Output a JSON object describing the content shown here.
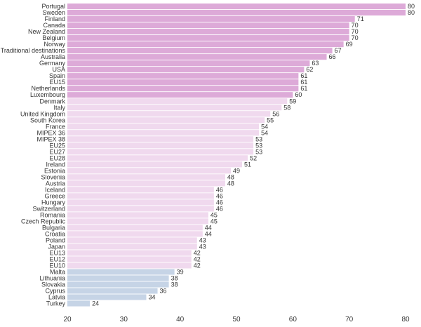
{
  "chart_data": {
    "type": "bar",
    "orientation": "horizontal",
    "categories": [
      "Portugal",
      "Sweden",
      "Finland",
      "Canada",
      "New Zealand",
      "Belgium",
      "Norway",
      "Traditional destinations",
      "Australia",
      "Germany",
      "USA",
      "Spain",
      "EU15",
      "Netherlands",
      "Luxembourg",
      "Denmark",
      "Italy",
      "United Kingdom",
      "South Korea",
      "France",
      "MIPEX 36",
      "MIPEX 38",
      "EU25",
      "EU27",
      "EU28",
      "Ireland",
      "Estonia",
      "Slovenia",
      "Austria",
      "Iceland",
      "Greece",
      "Hungary",
      "Switzerland",
      "Romania",
      "Czech Republic",
      "Bulgaria",
      "Croatia",
      "Poland",
      "Japan",
      "EU13",
      "EU12",
      "EU10",
      "Malta",
      "Lithuania",
      "Slovakia",
      "Cyprus",
      "Latvia",
      "Turkey"
    ],
    "values": [
      80,
      80,
      71,
      70,
      70,
      70,
      69,
      67,
      66,
      63,
      62,
      61,
      61,
      61,
      60,
      59,
      58,
      56,
      55,
      54,
      54,
      53,
      53,
      53,
      52,
      51,
      49,
      48,
      48,
      46,
      46,
      46,
      46,
      45,
      45,
      44,
      44,
      43,
      43,
      42,
      42,
      42,
      39,
      38,
      38,
      36,
      34,
      24
    ],
    "bar_colors": {
      "strong": "#ddaad8",
      "medium": "#f0d9ee",
      "weak": "#c6d4e6"
    },
    "color_groups": [
      "strong",
      "strong",
      "strong",
      "strong",
      "strong",
      "strong",
      "strong",
      "strong",
      "strong",
      "strong",
      "strong",
      "strong",
      "strong",
      "strong",
      "strong",
      "medium",
      "medium",
      "medium",
      "medium",
      "medium",
      "medium",
      "medium",
      "medium",
      "medium",
      "medium",
      "medium",
      "medium",
      "medium",
      "medium",
      "medium",
      "medium",
      "medium",
      "medium",
      "medium",
      "medium",
      "medium",
      "medium",
      "medium",
      "medium",
      "medium",
      "medium",
      "medium",
      "weak",
      "weak",
      "weak",
      "weak",
      "weak",
      "weak"
    ],
    "xlim": [
      20,
      80
    ],
    "xticks": [
      20,
      30,
      40,
      50,
      60,
      70,
      80
    ],
    "title": "",
    "xlabel": "",
    "ylabel": "",
    "grid": false,
    "legend": "none"
  }
}
